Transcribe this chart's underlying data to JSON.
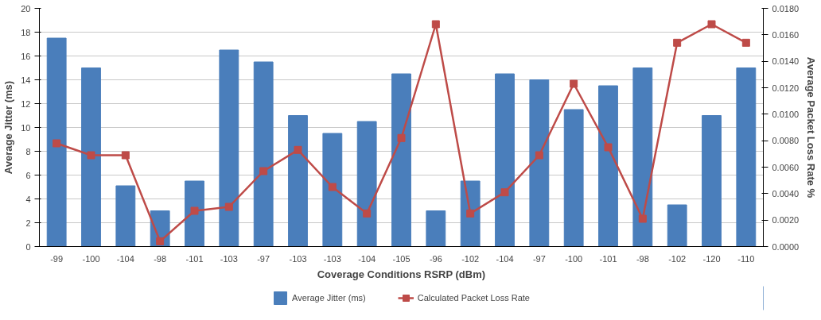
{
  "chart_data": {
    "type": "bar",
    "xlabel": "Coverage Conditions RSRP (dBm)",
    "ylabel": "Average Jitter (ms)",
    "y2label": "Average Packet Loss Rate %",
    "categories": [
      "-99",
      "-100",
      "-104",
      "-98",
      "-101",
      "-103",
      "-97",
      "-103",
      "-103",
      "-104",
      "-105",
      "-96",
      "-102",
      "-104",
      "-97",
      "-100",
      "-101",
      "-98",
      "-102",
      "-120",
      "-110"
    ],
    "series": [
      {
        "name": "Average Jitter (ms)",
        "color": "#4a7ebb",
        "values": [
          17.5,
          15,
          5.1,
          3,
          5.5,
          16.5,
          15.5,
          11,
          9.5,
          10.5,
          14.5,
          3,
          5.5,
          14.5,
          14,
          11.5,
          13.5,
          15,
          3.5,
          11,
          15
        ]
      },
      {
        "name": "Calculated Packet Loss Rate",
        "type": "line",
        "axis": "y2",
        "color": "#be4b48",
        "marker": "square",
        "values": [
          0.0078,
          0.0069,
          0.0069,
          0.0004,
          0.0027,
          0.003,
          0.0057,
          0.0073,
          0.0045,
          0.0025,
          0.0082,
          0.0168,
          0.0025,
          0.0041,
          0.0069,
          0.0123,
          0.0075,
          0.0021,
          0.0154,
          0.0168,
          0.0154
        ]
      }
    ],
    "ylim": [
      0,
      20
    ],
    "yticks": [
      0,
      2,
      4,
      6,
      8,
      10,
      12,
      14,
      16,
      18,
      20
    ],
    "y2lim": [
      0,
      0.018
    ],
    "y2ticks": [
      {
        "value": 0,
        "label": "0.0000"
      },
      {
        "value": 0.002,
        "label": "0.0020"
      },
      {
        "value": 0.004,
        "label": "0.0040"
      },
      {
        "value": 0.006,
        "label": "0.0060"
      },
      {
        "value": 0.008,
        "label": "0.0080"
      },
      {
        "value": 0.01,
        "label": "0.0100"
      },
      {
        "value": 0.012,
        "label": "0.0120"
      },
      {
        "value": 0.014,
        "label": "0.0140"
      },
      {
        "value": 0.016,
        "label": "0.0160"
      },
      {
        "value": 0.018,
        "label": "0.0180"
      }
    ],
    "grid": "y",
    "legend": "bottom"
  }
}
